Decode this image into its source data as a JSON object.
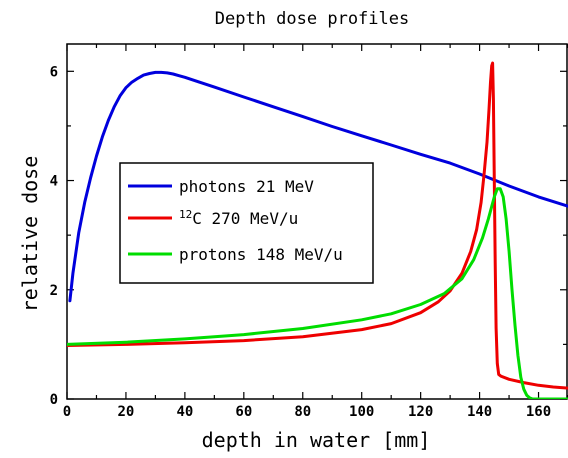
{
  "chart_data": {
    "type": "line",
    "title": "Depth dose profiles",
    "xlabel": "depth in water [mm]",
    "ylabel": "relative dose",
    "xlim": [
      0,
      170
    ],
    "ylim": [
      0,
      6.5
    ],
    "xticks": [
      0,
      20,
      40,
      60,
      80,
      100,
      120,
      140,
      160
    ],
    "xtick_labels": [
      "0",
      "20",
      "40",
      "60",
      "80",
      "100",
      "120",
      "140",
      "160"
    ],
    "yticks": [
      0,
      2,
      4,
      6
    ],
    "ytick_labels": [
      "0",
      "2",
      "4",
      "6"
    ],
    "grid": false,
    "legend_position": "center-left",
    "series": [
      {
        "name": "photons 21 MeV",
        "name_prefix": "",
        "name_sup": "",
        "name_main": "photons 21 MeV",
        "color": "#0000dd",
        "x": [
          1,
          2,
          4,
          6,
          8,
          10,
          12,
          14,
          16,
          18,
          20,
          22,
          24,
          26,
          28,
          30,
          32,
          34,
          36,
          38,
          40,
          45,
          50,
          60,
          70,
          80,
          90,
          100,
          110,
          120,
          130,
          140,
          150,
          160,
          170
        ],
        "y": [
          1.8,
          2.3,
          3.05,
          3.6,
          4.05,
          4.45,
          4.8,
          5.1,
          5.35,
          5.55,
          5.7,
          5.8,
          5.87,
          5.93,
          5.96,
          5.98,
          5.98,
          5.97,
          5.95,
          5.92,
          5.89,
          5.8,
          5.71,
          5.53,
          5.35,
          5.17,
          4.99,
          4.82,
          4.65,
          4.48,
          4.32,
          4.12,
          3.9,
          3.7,
          3.53
        ]
      },
      {
        "name": "12C 270 MeV/u",
        "name_prefix": "",
        "name_sup": "12",
        "name_main": "C 270 MeV/u",
        "color": "#ee0000",
        "x": [
          0,
          20,
          40,
          60,
          80,
          100,
          110,
          120,
          126,
          130,
          134,
          137,
          139,
          140.5,
          141.5,
          142.5,
          143.2,
          143.7,
          144.1,
          144.4,
          144.7,
          145,
          145.3,
          145.6,
          146,
          146.5,
          147.2,
          150,
          155,
          160,
          165,
          170
        ],
        "y": [
          0.98,
          1.0,
          1.03,
          1.07,
          1.14,
          1.27,
          1.38,
          1.58,
          1.78,
          1.98,
          2.3,
          2.7,
          3.1,
          3.6,
          4.1,
          4.7,
          5.3,
          5.8,
          6.1,
          6.15,
          5.5,
          4.0,
          2.5,
          1.3,
          0.65,
          0.45,
          0.42,
          0.36,
          0.3,
          0.25,
          0.22,
          0.2
        ]
      },
      {
        "name": "protons 148 MeV/u",
        "name_prefix": "",
        "name_sup": "",
        "name_main": "protons 148 MeV/u",
        "color": "#00dd00",
        "x": [
          0,
          20,
          40,
          60,
          80,
          100,
          110,
          120,
          128,
          134,
          138,
          141,
          143,
          145,
          146,
          147,
          148,
          149,
          150,
          151,
          152,
          153,
          154,
          155,
          156,
          157,
          158,
          170
        ],
        "y": [
          1.0,
          1.04,
          1.1,
          1.18,
          1.29,
          1.45,
          1.56,
          1.73,
          1.93,
          2.2,
          2.55,
          2.95,
          3.3,
          3.7,
          3.85,
          3.85,
          3.7,
          3.3,
          2.7,
          2.0,
          1.35,
          0.8,
          0.4,
          0.18,
          0.07,
          0.02,
          0.0,
          0.0
        ]
      }
    ]
  }
}
